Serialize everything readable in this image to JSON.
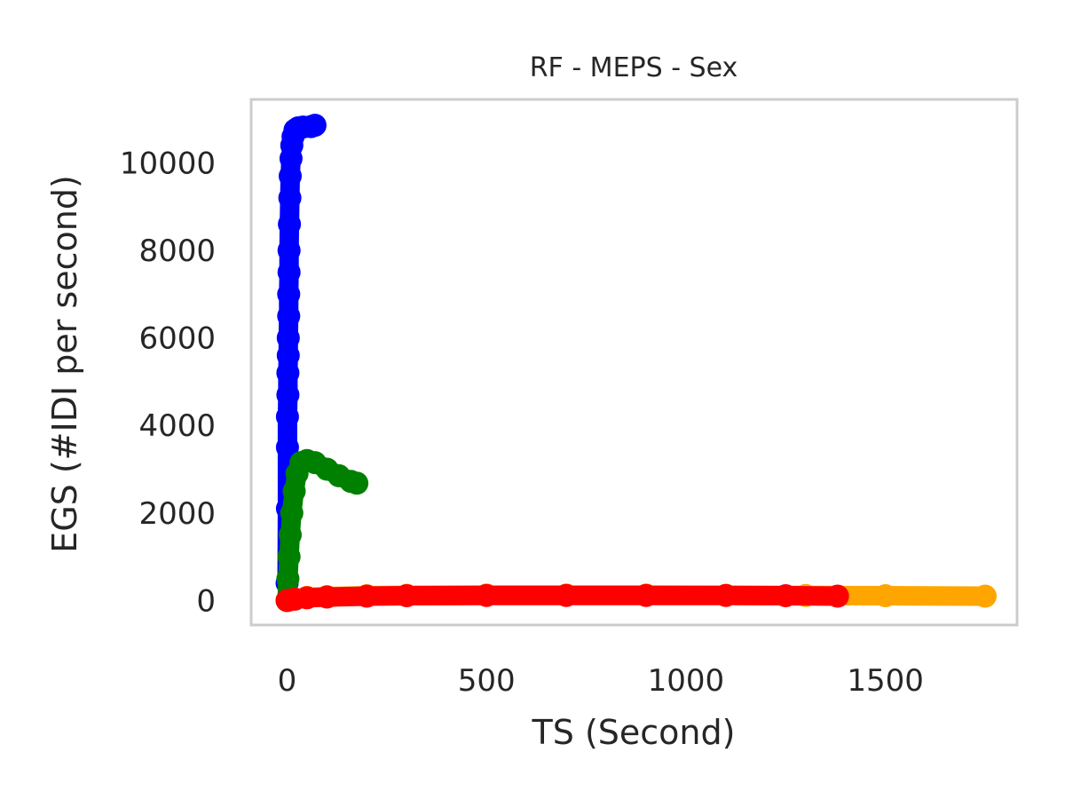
{
  "chart_data": {
    "type": "line",
    "title": "RF - MEPS - Sex",
    "xlabel": "TS (Second)",
    "ylabel": "EGS (#IDI  per second)",
    "xlim": [
      -90,
      1830
    ],
    "ylim": [
      -560,
      11450
    ],
    "x_ticks": [
      0,
      500,
      1000,
      1500
    ],
    "y_ticks": [
      0,
      2000,
      4000,
      6000,
      8000,
      10000
    ],
    "grid": false,
    "legend": "none",
    "series": [
      {
        "color": "#0000ff",
        "x": [
          0,
          1,
          1,
          1,
          2,
          2,
          3,
          3,
          4,
          4,
          5,
          5,
          6,
          7,
          8,
          10,
          12,
          15,
          20,
          28,
          40,
          60,
          70
        ],
        "y": [
          400,
          2100,
          3500,
          4200,
          4700,
          5200,
          5600,
          6000,
          6500,
          7000,
          7500,
          8000,
          8600,
          9200,
          9700,
          10100,
          10400,
          10600,
          10750,
          10800,
          10820,
          10830,
          10860
        ]
      },
      {
        "color": "#ffa500",
        "x": [
          0,
          10,
          50,
          100,
          200,
          300,
          500,
          700,
          900,
          1100,
          1300,
          1500,
          1750
        ],
        "y": [
          0,
          40,
          70,
          90,
          110,
          120,
          125,
          125,
          125,
          120,
          115,
          110,
          100
        ]
      },
      {
        "color": "#008000",
        "x": [
          0,
          2,
          5,
          8,
          12,
          18,
          25,
          35,
          50,
          70,
          100,
          130,
          160,
          175
        ],
        "y": [
          0,
          500,
          1000,
          1500,
          2000,
          2500,
          2900,
          3150,
          3200,
          3150,
          3000,
          2850,
          2720,
          2680
        ]
      },
      {
        "color": "#ff0000",
        "x": [
          0,
          5,
          20,
          50,
          100,
          200,
          300,
          500,
          700,
          900,
          1100,
          1250,
          1380
        ],
        "y": [
          0,
          10,
          30,
          60,
          80,
          100,
          110,
          115,
          115,
          115,
          115,
          110,
          100
        ]
      }
    ]
  }
}
